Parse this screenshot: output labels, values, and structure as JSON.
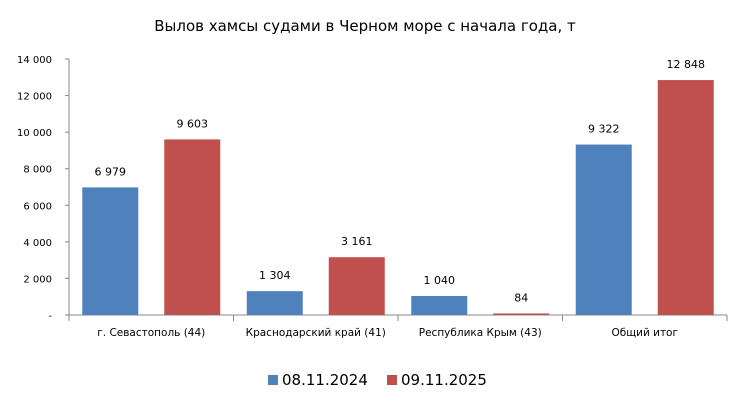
{
  "chart_data": {
    "type": "bar",
    "title": "Вылов хамсы судами в Черном море с начала  года, т",
    "xlabel": "",
    "ylabel": "",
    "categories": [
      "г. Севастополь (44)",
      "Краснодарский край (41)",
      "Республика Крым (43)",
      "Общий итог"
    ],
    "series": [
      {
        "name": "08.11.2024",
        "color": "#4F81BD",
        "values": [
          6979,
          1304,
          1040,
          9322
        ],
        "labels": [
          "6 979",
          "1 304",
          "1 040",
          "9 322"
        ]
      },
      {
        "name": "09.11.2025",
        "color": "#C0504D",
        "values": [
          9603,
          3161,
          84,
          12848
        ],
        "labels": [
          "9 603",
          "3 161",
          "84",
          "12 848"
        ]
      }
    ],
    "ylim": [
      0,
      14000
    ],
    "yticks": [
      0,
      2000,
      4000,
      6000,
      8000,
      10000,
      12000,
      14000
    ],
    "ytick_labels": [
      "-",
      "2 000",
      "4 000",
      "6 000",
      "8 000",
      "10 000",
      "12 000",
      "14 000"
    ],
    "grid": false,
    "legend": "bottom"
  }
}
